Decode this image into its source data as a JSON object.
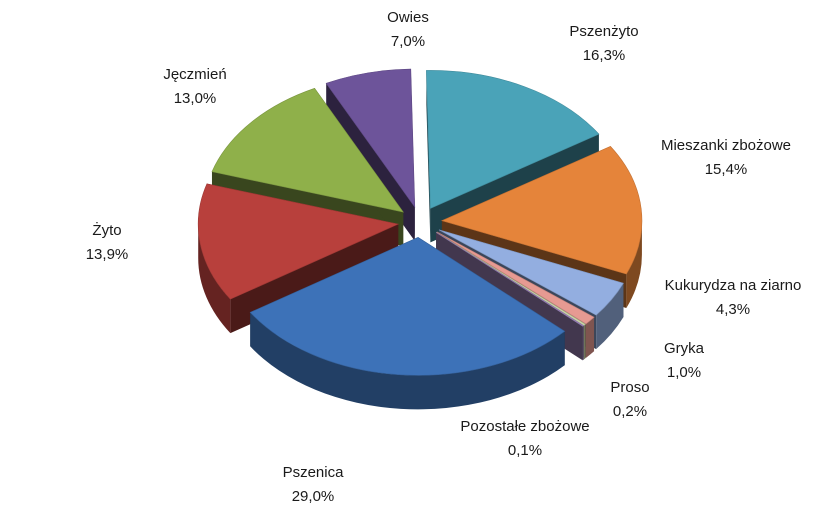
{
  "chart_data": {
    "type": "pie",
    "title": "",
    "unit": "%",
    "slices": [
      {
        "name": "Pszenżyto",
        "value": 16.3,
        "label": "16,3%",
        "color": "#4aa3b8"
      },
      {
        "name": "Mieszanki zbożowe",
        "value": 15.4,
        "label": "15,4%",
        "color": "#e5843a"
      },
      {
        "name": "Kukurydza na ziarno",
        "value": 4.3,
        "label": "4,3%",
        "color": "#93aee0"
      },
      {
        "name": "Gryka",
        "value": 1.0,
        "label": "1,0%",
        "color": "#e69a92"
      },
      {
        "name": "Proso",
        "value": 0.2,
        "label": "0,2%",
        "color": "#c9d4a6"
      },
      {
        "name": "Pozostałe zbożowe",
        "value": 0.1,
        "label": "0,1%",
        "color": "#a48ac4"
      },
      {
        "name": "Pszenica",
        "value": 29.0,
        "label": "29,0%",
        "color": "#3d72b8"
      },
      {
        "name": "Żyto",
        "value": 13.9,
        "label": "13,9%",
        "color": "#b8403c"
      },
      {
        "name": "Jęczmień",
        "value": 13.0,
        "label": "13,0%",
        "color": "#8fb04a"
      },
      {
        "name": "Owies",
        "value": 7.0,
        "label": "7,0%",
        "color": "#6d549a"
      }
    ]
  }
}
